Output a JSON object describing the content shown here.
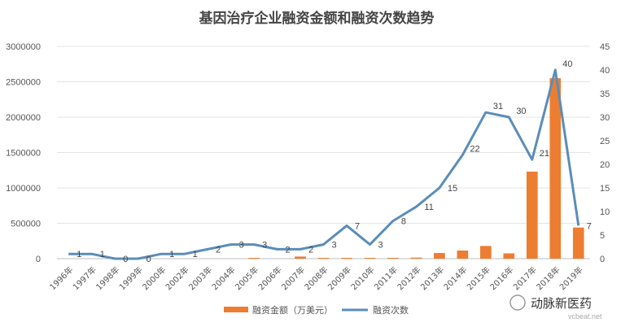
{
  "chart_data": {
    "type": "bar+line",
    "title": "基因治疗企业融资金额和融资次数趋势",
    "categories": [
      "1996年",
      "1997年",
      "1998年",
      "1999年",
      "2000年",
      "2002年",
      "2003年",
      "2004年",
      "2005年",
      "2006年",
      "2007年",
      "2008年",
      "2009年",
      "2010年",
      "2011年",
      "2012年",
      "2013年",
      "2014年",
      "2015年",
      "2016年",
      "2017年",
      "2018年",
      "2019年"
    ],
    "series": [
      {
        "name": "融资金额（万美元）",
        "type": "bar",
        "axis": "left",
        "color": "#ED7D31",
        "values": [
          0,
          0,
          0,
          0,
          0,
          0,
          0,
          0,
          5000,
          0,
          30000,
          3000,
          2000,
          2000,
          2000,
          15000,
          80000,
          115000,
          180000,
          75000,
          1230000,
          2550000,
          440000
        ]
      },
      {
        "name": "融资次数",
        "type": "line",
        "axis": "right",
        "color": "#5B8DB8",
        "values": [
          1,
          1,
          0,
          0,
          1,
          1,
          2,
          3,
          3,
          2,
          2,
          3,
          7,
          3,
          8,
          11,
          15,
          22,
          31,
          30,
          21,
          40,
          7
        ]
      }
    ],
    "y_left": {
      "min": 0,
      "max": 3000000,
      "ticks": [
        "0",
        "500000",
        "1000000",
        "1500000",
        "2000000",
        "2500000",
        "3000000"
      ]
    },
    "y_right": {
      "min": 0,
      "max": 45,
      "ticks": [
        "0",
        "5",
        "10",
        "15",
        "20",
        "25",
        "30",
        "35",
        "40",
        "45"
      ]
    },
    "legend_position": "bottom",
    "grid": true
  },
  "legend": {
    "bar_label": "融资金额（万美元）",
    "line_label": "融资次数"
  },
  "watermark": {
    "text": "动脉新医药",
    "url": "vcbeat.net"
  }
}
